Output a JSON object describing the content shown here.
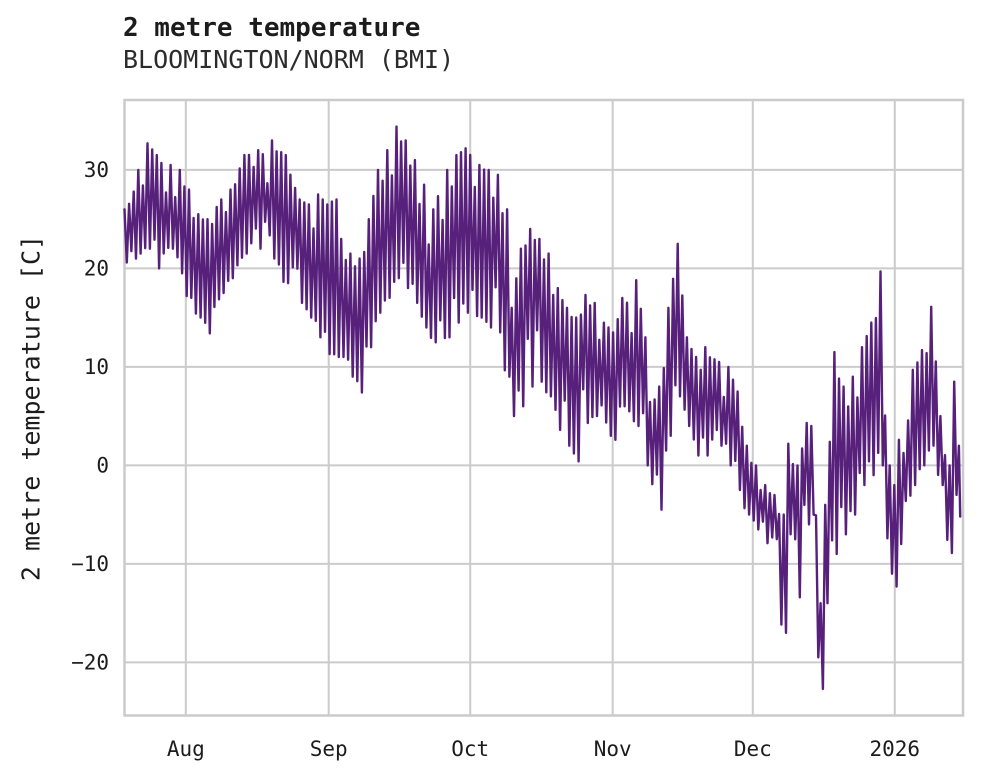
{
  "header": {
    "title": "2 metre temperature",
    "subtitle": "BLOOMINGTON/NORM (BMI)"
  },
  "chart_data": {
    "type": "line",
    "title": "2 metre temperature",
    "station": "BLOOMINGTON/NORM (BMI)",
    "xlabel": "",
    "ylabel": "2 metre temperature [C]",
    "units": "C",
    "grid": true,
    "legend": "none",
    "line_color": "#57207b",
    "grid_color": "#cbcbcb",
    "ylim": [
      -25.4,
      37.1
    ],
    "y_ticks": [
      30,
      20,
      10,
      0,
      -10,
      -20
    ],
    "x_domain_days": [
      0,
      181.9
    ],
    "x_start_date": "Jul 18",
    "x_ticks": [
      {
        "day": 13.3,
        "label": "Aug"
      },
      {
        "day": 44.3,
        "label": "Sep"
      },
      {
        "day": 75.0,
        "label": "Oct"
      },
      {
        "day": 105.9,
        "label": "Nov"
      },
      {
        "day": 136.3,
        "label": "Dec"
      },
      {
        "day": 167.1,
        "label": "2026"
      }
    ],
    "sampling": "hourly series shown as daily max/min envelope read from plot",
    "envelope": [
      {
        "day": 0,
        "date": "Jul 18",
        "max": 26,
        "min": 20.6
      },
      {
        "day": 1.5,
        "date": "Jul 19",
        "max": 27.8,
        "min": 21
      },
      {
        "day": 3,
        "date": "Jul 21",
        "max": 30,
        "min": 21.5
      },
      {
        "day": 5,
        "date": "Jul 23",
        "max": 32.7,
        "min": 22
      },
      {
        "day": 7,
        "date": "Jul 25",
        "max": 31.5,
        "min": 20
      },
      {
        "day": 10,
        "date": "Jul 28",
        "max": 30.5,
        "min": 22
      },
      {
        "day": 12,
        "date": "Jul 30",
        "max": 30,
        "min": 19.5
      },
      {
        "day": 13.5,
        "date": "Jul 31",
        "max": 28,
        "min": 17
      },
      {
        "day": 16,
        "date": "Aug 3",
        "max": 25.5,
        "min": 15
      },
      {
        "day": 18,
        "date": "Aug 5",
        "max": 25,
        "min": 13.4
      },
      {
        "day": 21,
        "date": "Aug 8",
        "max": 27,
        "min": 17.5
      },
      {
        "day": 23,
        "date": "Aug 10",
        "max": 28,
        "min": 19
      },
      {
        "day": 26,
        "date": "Aug 13",
        "max": 31.5,
        "min": 21.5
      },
      {
        "day": 29,
        "date": "Aug 16",
        "max": 32,
        "min": 22
      },
      {
        "day": 32,
        "date": "Aug 19",
        "max": 33,
        "min": 21
      },
      {
        "day": 34.5,
        "date": "Aug 21",
        "max": 31.5,
        "min": 18.5
      },
      {
        "day": 38,
        "date": "Aug 25",
        "max": 27,
        "min": 16.5
      },
      {
        "day": 40,
        "date": "Aug 27",
        "max": 26.5,
        "min": 15
      },
      {
        "day": 42,
        "date": "Aug 29",
        "max": 27.5,
        "min": 13
      },
      {
        "day": 44,
        "date": "Aug 31",
        "max": 26.5,
        "min": 11.3
      },
      {
        "day": 45.5,
        "date": "Sep 1",
        "max": 27,
        "min": 11
      },
      {
        "day": 47,
        "date": "Sep 3",
        "max": 23,
        "min": 11
      },
      {
        "day": 49,
        "date": "Sep 5",
        "max": 21.5,
        "min": 9
      },
      {
        "day": 50.5,
        "date": "Sep 6",
        "max": 21,
        "min": 7.4
      },
      {
        "day": 53,
        "date": "Sep 9",
        "max": 25,
        "min": 12
      },
      {
        "day": 55,
        "date": "Sep 11",
        "max": 30,
        "min": 15.5
      },
      {
        "day": 57,
        "date": "Sep 13",
        "max": 32,
        "min": 17
      },
      {
        "day": 59,
        "date": "Sep 15",
        "max": 34.4,
        "min": 19
      },
      {
        "day": 61,
        "date": "Sep 17",
        "max": 33,
        "min": 18
      },
      {
        "day": 63,
        "date": "Sep 19",
        "max": 31,
        "min": 16.5
      },
      {
        "day": 65,
        "date": "Sep 21",
        "max": 28.5,
        "min": 14
      },
      {
        "day": 67,
        "date": "Sep 23",
        "max": 26,
        "min": 12.5
      },
      {
        "day": 70,
        "date": "Sep 26",
        "max": 30,
        "min": 13
      },
      {
        "day": 72,
        "date": "Sep 28",
        "max": 31.5,
        "min": 14.5
      },
      {
        "day": 74,
        "date": "Sep 30",
        "max": 32.2,
        "min": 15.5
      },
      {
        "day": 77,
        "date": "Oct 3",
        "max": 30.5,
        "min": 15
      },
      {
        "day": 79,
        "date": "Oct 5",
        "max": 30,
        "min": 14
      },
      {
        "day": 81,
        "date": "Oct 7",
        "max": 29.5,
        "min": 13.5
      },
      {
        "day": 82.5,
        "date": "Oct 8",
        "max": 26,
        "min": 9
      },
      {
        "day": 84,
        "date": "Oct 10",
        "max": 16,
        "min": 5
      },
      {
        "day": 86,
        "date": "Oct 12",
        "max": 22,
        "min": 6
      },
      {
        "day": 88,
        "date": "Oct 14",
        "max": 24,
        "min": 8
      },
      {
        "day": 90,
        "date": "Oct 16",
        "max": 23,
        "min": 8.5
      },
      {
        "day": 92,
        "date": "Oct 18",
        "max": 21.5,
        "min": 7
      },
      {
        "day": 94,
        "date": "Oct 20",
        "max": 18,
        "min": 3.6
      },
      {
        "day": 96,
        "date": "Oct 22",
        "max": 16,
        "min": 2
      },
      {
        "day": 98,
        "date": "Oct 24",
        "max": 15,
        "min": 0.4
      },
      {
        "day": 100,
        "date": "Oct 26",
        "max": 17.3,
        "min": 4.3
      },
      {
        "day": 102,
        "date": "Oct 28",
        "max": 16.5,
        "min": 5
      },
      {
        "day": 104.5,
        "date": "Oct 30",
        "max": 14,
        "min": 3
      },
      {
        "day": 106,
        "date": "Nov 1",
        "max": 13.5,
        "min": 2.6
      },
      {
        "day": 108,
        "date": "Nov 3",
        "max": 17,
        "min": 6
      },
      {
        "day": 111,
        "date": "Nov 6",
        "max": 18.8,
        "min": 4
      },
      {
        "day": 113,
        "date": "Nov 8",
        "max": 13,
        "min": 0
      },
      {
        "day": 115.5,
        "date": "Nov 10",
        "max": 8,
        "min": -4.5
      },
      {
        "day": 118,
        "date": "Nov 13",
        "max": 16,
        "min": 3
      },
      {
        "day": 120,
        "date": "Nov 15",
        "max": 22.5,
        "min": 7
      },
      {
        "day": 122,
        "date": "Nov 17",
        "max": 13,
        "min": 4
      },
      {
        "day": 124,
        "date": "Nov 19",
        "max": 11,
        "min": 1
      },
      {
        "day": 126,
        "date": "Nov 21",
        "max": 12,
        "min": 1
      },
      {
        "day": 129,
        "date": "Nov 24",
        "max": 10.5,
        "min": 2
      },
      {
        "day": 131,
        "date": "Nov 26",
        "max": 10,
        "min": 0
      },
      {
        "day": 133,
        "date": "Nov 28",
        "max": 7.5,
        "min": -2.5
      },
      {
        "day": 135,
        "date": "Nov 30",
        "max": 2,
        "min": -5
      },
      {
        "day": 137,
        "date": "Dec 2",
        "max": 0,
        "min": -6.5
      },
      {
        "day": 139,
        "date": "Dec 4",
        "max": -2,
        "min": -7.9
      },
      {
        "day": 141,
        "date": "Dec 6",
        "max": -3,
        "min": -7.5
      },
      {
        "day": 142.5,
        "date": "Dec 7",
        "max": -5,
        "min": -17
      },
      {
        "day": 144,
        "date": "Dec 9",
        "max": 2.2,
        "min": -7
      },
      {
        "day": 146,
        "date": "Dec 11",
        "max": 0,
        "min": -13.4
      },
      {
        "day": 148,
        "date": "Dec 13",
        "max": 4.3,
        "min": -6
      },
      {
        "day": 149.3,
        "date": "Dec 14",
        "max": 4,
        "min": -5
      },
      {
        "day": 150.7,
        "date": "Dec 15",
        "max": -14,
        "min": -22.7
      },
      {
        "day": 152,
        "date": "Dec 17",
        "max": -4,
        "min": -14
      },
      {
        "day": 154,
        "date": "Dec 19",
        "max": 11.5,
        "min": -9
      },
      {
        "day": 156,
        "date": "Dec 21",
        "max": 8,
        "min": -7
      },
      {
        "day": 158,
        "date": "Dec 23",
        "max": 9,
        "min": -5
      },
      {
        "day": 160,
        "date": "Dec 25",
        "max": 12,
        "min": -2
      },
      {
        "day": 162,
        "date": "Dec 27",
        "max": 14.5,
        "min": -1
      },
      {
        "day": 164,
        "date": "Dec 29",
        "max": 19.7,
        "min": 0
      },
      {
        "day": 165.7,
        "date": "Dec 31",
        "max": 0,
        "min": -11
      },
      {
        "day": 166.8,
        "date": "Jan 1",
        "max": -2,
        "min": -12.3
      },
      {
        "day": 168.3,
        "date": "Jan 2",
        "max": 2.6,
        "min": -8
      },
      {
        "day": 171,
        "date": "Jan 5",
        "max": 9.7,
        "min": -2
      },
      {
        "day": 173,
        "date": "Jan 7",
        "max": 11.7,
        "min": 0
      },
      {
        "day": 175,
        "date": "Jan 9",
        "max": 16.1,
        "min": 2
      },
      {
        "day": 177,
        "date": "Jan 11",
        "max": 5,
        "min": -2
      },
      {
        "day": 178.5,
        "date": "Jan 12",
        "max": 0,
        "min": -8.9
      },
      {
        "day": 179.8,
        "date": "Jan 14",
        "max": 8.5,
        "min": -3
      },
      {
        "day": 181.3,
        "date": "Jan 15",
        "max": 2,
        "min": -5.2
      }
    ]
  }
}
